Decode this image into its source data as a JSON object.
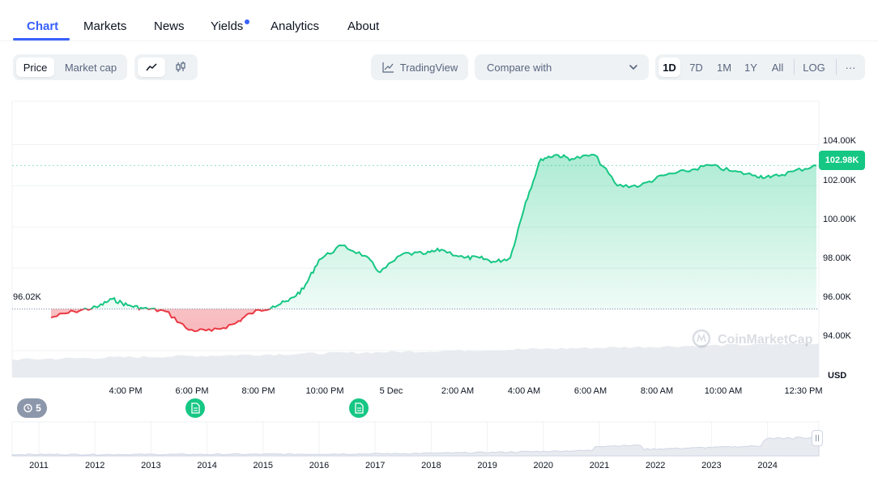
{
  "tabs": [
    {
      "label": "Chart",
      "active": true
    },
    {
      "label": "Markets"
    },
    {
      "label": "News"
    },
    {
      "label": "Yields",
      "has_dot": true
    },
    {
      "label": "Analytics"
    },
    {
      "label": "About"
    }
  ],
  "toolbar": {
    "price_label": "Price",
    "market_cap_label": "Market cap",
    "tradingview_label": "TradingView",
    "compare_label": "Compare with",
    "ranges": [
      "1D",
      "7D",
      "1M",
      "1Y",
      "All"
    ],
    "active_range": "1D",
    "log_label": "LOG",
    "more_label": "···"
  },
  "chart": {
    "watermark": "CoinMarketCap",
    "current_price_label": "102.98K",
    "open_price_label": "96.02K",
    "currency_label": "USD",
    "y_ticks": [
      "104.00K",
      "102.00K",
      "100.00K",
      "98.00K",
      "96.00K",
      "94.00K"
    ],
    "x_ticks": [
      "4:00 PM",
      "6:00 PM",
      "8:00 PM",
      "10:00 PM",
      "5 Dec",
      "2:00 AM",
      "4:00 AM",
      "6:00 AM",
      "8:00 AM",
      "10:00 AM",
      "12:30 PM"
    ],
    "history_count": "5",
    "overview_years": [
      "2011",
      "2012",
      "2013",
      "2014",
      "2015",
      "2016",
      "2017",
      "2018",
      "2019",
      "2020",
      "2021",
      "2022",
      "2023",
      "2024"
    ],
    "colors": {
      "up": "#16c784",
      "down": "#ea3943",
      "accent": "#3861fb"
    }
  },
  "chart_data": {
    "type": "area",
    "ylabel": "USD",
    "ylim": [
      92700,
      106100
    ],
    "baseline": 96020,
    "x_labels": [
      "4:00 PM",
      "6:00 PM",
      "8:00 PM",
      "10:00 PM",
      "5 Dec",
      "2:00 AM",
      "4:00 AM",
      "6:00 AM",
      "8:00 AM",
      "10:00 AM",
      "12:30 PM"
    ],
    "x": [
      0.0,
      0.03,
      0.06,
      0.08,
      0.1,
      0.12,
      0.15,
      0.18,
      0.21,
      0.24,
      0.26,
      0.29,
      0.31,
      0.33,
      0.35,
      0.38,
      0.41,
      0.43,
      0.46,
      0.49,
      0.51,
      0.54,
      0.56,
      0.58,
      0.6,
      0.62,
      0.64,
      0.66,
      0.68,
      0.71,
      0.74,
      0.77,
      0.8,
      0.83,
      0.86,
      0.89,
      0.92,
      0.94,
      0.97,
      1.0
    ],
    "series": [
      {
        "values": [
          95600,
          95900,
          96100,
          96500,
          96200,
          96050,
          95900,
          95000,
          94950,
          95300,
          95800,
          96150,
          96400,
          97000,
          98400,
          99100,
          98600,
          97800,
          98700,
          98700,
          98900,
          98500,
          98500,
          98300,
          98500,
          101200,
          103300,
          103500,
          103300,
          103500,
          102000,
          102000,
          102500,
          102700,
          103000,
          102700,
          102500,
          102400,
          102700,
          102980
        ]
      }
    ]
  }
}
